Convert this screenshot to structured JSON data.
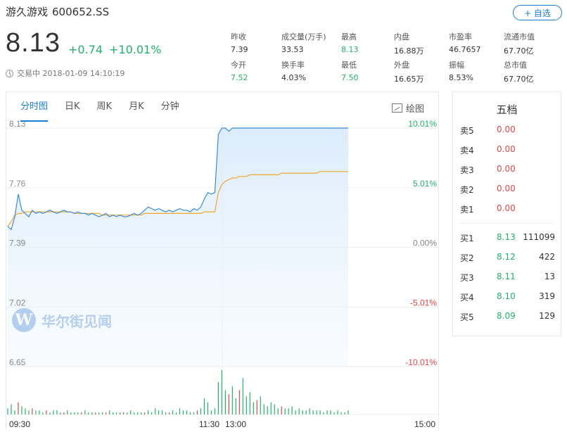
{
  "stock": {
    "name": "游久游戏",
    "code": "600652.SS",
    "follow_label": "+ 自选",
    "price": "8.13",
    "change": "+0.74",
    "change_pct": "+10.01%",
    "status": "交易中 2018-01-09 14:10:19"
  },
  "stats": [
    {
      "label": "昨收",
      "value": "7.39",
      "color": "normal"
    },
    {
      "label": "成交量(万手)",
      "value": "33.53",
      "color": "normal"
    },
    {
      "label": "最高",
      "value": "8.13",
      "color": "green"
    },
    {
      "label": "内盘",
      "value": "16.88万",
      "color": "normal"
    },
    {
      "label": "市盈率",
      "value": "46.7657",
      "color": "normal"
    },
    {
      "label": "流通市值",
      "value": "67.70亿",
      "color": "normal"
    },
    {
      "label": "今开",
      "value": "7.52",
      "color": "green"
    },
    {
      "label": "换手率",
      "value": "4.03%",
      "color": "normal"
    },
    {
      "label": "最低",
      "value": "7.50",
      "color": "green"
    },
    {
      "label": "外盘",
      "value": "16.65万",
      "color": "normal"
    },
    {
      "label": "振幅",
      "value": "8.53%",
      "color": "normal"
    },
    {
      "label": "总市值",
      "value": "67.70亿",
      "color": "normal"
    }
  ],
  "tabs": [
    "分时图",
    "日K",
    "周K",
    "月K",
    "分钟"
  ],
  "draw_label": "绘图",
  "order_book": {
    "title": "五档",
    "asks": [
      {
        "label": "卖5",
        "price": "0.00",
        "volume": ""
      },
      {
        "label": "卖4",
        "price": "0.00",
        "volume": ""
      },
      {
        "label": "卖3",
        "price": "0.00",
        "volume": ""
      },
      {
        "label": "卖2",
        "price": "0.00",
        "volume": ""
      },
      {
        "label": "卖1",
        "price": "0.00",
        "volume": ""
      }
    ],
    "bids": [
      {
        "label": "买1",
        "price": "8.13",
        "volume": "111099"
      },
      {
        "label": "买2",
        "price": "8.12",
        "volume": "422"
      },
      {
        "label": "买3",
        "price": "8.11",
        "volume": "13"
      },
      {
        "label": "买4",
        "price": "8.10",
        "volume": "319"
      },
      {
        "label": "买5",
        "price": "8.09",
        "volume": "129"
      }
    ]
  },
  "watermark": "华尔街见闻",
  "watermark_logo": "W",
  "colors": {
    "up": "#1fb36b",
    "down": "#e64545",
    "accent": "#1a7ed6",
    "price_line": "#3a8be0",
    "avg_line": "#f0a830"
  },
  "chart_data": {
    "type": "line",
    "price_ticks": [
      "8.13",
      "7.76",
      "7.39",
      "7.02",
      "6.65"
    ],
    "pct_ticks": [
      "10.01%",
      "5.01%",
      "0.00%",
      "-5.01%",
      "-10.01%"
    ],
    "time_ticks": [
      "09:30",
      "11:30",
      "13:00",
      "15:00"
    ],
    "ylim": [
      6.65,
      8.13
    ],
    "series": [
      {
        "values": [
          7.52,
          7.5,
          7.58,
          7.72,
          7.62,
          7.6,
          7.58,
          7.62,
          7.6,
          7.61,
          7.6,
          7.61,
          7.62,
          7.61,
          7.6,
          7.61,
          7.62,
          7.61,
          7.61,
          7.6,
          7.61,
          7.6,
          7.6,
          7.59,
          7.6,
          7.59,
          7.58,
          7.59,
          7.6,
          7.58,
          7.59,
          7.58,
          7.59,
          7.58,
          7.58,
          7.59,
          7.6,
          7.59,
          7.6,
          7.62,
          7.64,
          7.63,
          7.62,
          7.63,
          7.62,
          7.61,
          7.62,
          7.61,
          7.62,
          7.63,
          7.62,
          7.62,
          7.61,
          7.63,
          7.62,
          7.64,
          7.69,
          7.73,
          7.72,
          7.73,
          8.09,
          8.13,
          8.13,
          8.11,
          8.13,
          8.13,
          8.13,
          8.13,
          8.13,
          8.13,
          8.13,
          8.13,
          8.13,
          8.13,
          8.13,
          8.13,
          8.13,
          8.13,
          8.13,
          8.13,
          8.13,
          8.13,
          8.13,
          8.13,
          8.13,
          8.13,
          8.13,
          8.13,
          8.13,
          8.13,
          8.13,
          8.13,
          8.13,
          8.13,
          8.13,
          8.13,
          8.13,
          8.13
        ]
      },
      {
        "values": [
          7.52,
          7.55,
          7.59,
          7.6,
          7.6,
          7.61,
          7.61,
          7.61,
          7.61,
          7.61,
          7.61,
          7.61,
          7.61,
          7.61,
          7.61,
          7.61,
          7.61,
          7.61,
          7.61,
          7.6,
          7.6,
          7.6,
          7.6,
          7.6,
          7.6,
          7.6,
          7.6,
          7.59,
          7.59,
          7.59,
          7.59,
          7.59,
          7.59,
          7.59,
          7.59,
          7.59,
          7.59,
          7.59,
          7.59,
          7.6,
          7.6,
          7.6,
          7.6,
          7.6,
          7.6,
          7.6,
          7.6,
          7.6,
          7.6,
          7.6,
          7.6,
          7.6,
          7.6,
          7.6,
          7.6,
          7.6,
          7.61,
          7.61,
          7.61,
          7.61,
          7.73,
          7.78,
          7.8,
          7.81,
          7.82,
          7.82,
          7.83,
          7.83,
          7.83,
          7.84,
          7.84,
          7.84,
          7.84,
          7.84,
          7.84,
          7.84,
          7.84,
          7.84,
          7.85,
          7.85,
          7.85,
          7.85,
          7.85,
          7.85,
          7.85,
          7.85,
          7.85,
          7.85,
          7.85,
          7.86,
          7.86,
          7.86,
          7.86,
          7.86,
          7.86,
          7.86,
          7.86,
          7.86
        ]
      }
    ],
    "volume": [
      3,
      5,
      2,
      6,
      4,
      3,
      2,
      3,
      2,
      2,
      1,
      2,
      1,
      2,
      2,
      1,
      1,
      2,
      1,
      1,
      1,
      1,
      2,
      1,
      1,
      1,
      1,
      1,
      1,
      2,
      1,
      1,
      1,
      1,
      1,
      2,
      1,
      1,
      1,
      1,
      2,
      1,
      3,
      2,
      2,
      1,
      1,
      2,
      1,
      3,
      2,
      2,
      1,
      1,
      2,
      3,
      8,
      6,
      2,
      3,
      16,
      22,
      12,
      10,
      14,
      8,
      12,
      18,
      9,
      11,
      6,
      7,
      9,
      5,
      4,
      6,
      5,
      3,
      4,
      3,
      3,
      4,
      2,
      3,
      2,
      2,
      3,
      2,
      2,
      2,
      1,
      2,
      2,
      1,
      2,
      1,
      1,
      2
    ],
    "volume_colors": [
      "g",
      "g",
      "g",
      "r",
      "g",
      "g",
      "g",
      "r",
      "g",
      "g",
      "g",
      "r",
      "g",
      "g",
      "g",
      "g",
      "r",
      "g",
      "g",
      "g",
      "g",
      "r",
      "g",
      "g",
      "g",
      "r",
      "g",
      "g",
      "r",
      "g",
      "g",
      "g",
      "g",
      "r",
      "g",
      "g",
      "g",
      "g",
      "g",
      "r",
      "g",
      "g",
      "g",
      "g",
      "g",
      "g",
      "r",
      "g",
      "g",
      "g",
      "g",
      "g",
      "g",
      "g",
      "r",
      "g",
      "g",
      "g",
      "g",
      "g",
      "g",
      "g",
      "g",
      "r",
      "g",
      "g",
      "r",
      "g",
      "g",
      "g",
      "g",
      "r",
      "g",
      "g",
      "g",
      "g",
      "g",
      "g",
      "r",
      "g",
      "g",
      "g",
      "g",
      "g",
      "g",
      "g",
      "g",
      "g",
      "g",
      "g",
      "g",
      "g",
      "g",
      "g",
      "g",
      "g",
      "g",
      "g"
    ]
  }
}
